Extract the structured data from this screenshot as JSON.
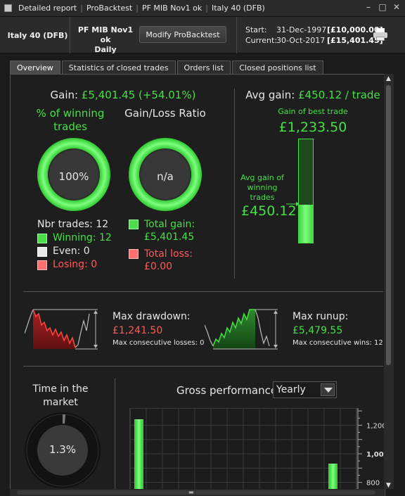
{
  "titlebar": {
    "segments": [
      "Detailed report",
      "ProBacktest",
      "PF MIB Nov1 ok",
      "Italy 40 (DFB)"
    ],
    "controls": [
      "–",
      "□",
      "✕"
    ]
  },
  "header": {
    "instrument": "Italy 40 (DFB)",
    "strategy_name": "PF MIB Nov1 ok",
    "timeframe": "Daily",
    "modify_button": "Modify ProBacktest",
    "start_label": "Start:",
    "start_date": "31-Dec-1997",
    "start_value": "[£10,000.00]",
    "current_label": "Current:",
    "current_date": "30-Oct-2017",
    "current_value": "[£15,401.45]",
    "print_icon": "printer-icon"
  },
  "tabs": [
    {
      "label": "Overview",
      "active": true
    },
    {
      "label": "Statistics of closed trades",
      "active": false
    },
    {
      "label": "Orders list",
      "active": false
    },
    {
      "label": "Closed positions list",
      "active": false
    }
  ],
  "overview": {
    "gain_label": "Gain:",
    "gain_value": "£5,401.45 (+54.01%)",
    "winning_title": "% of winning trades",
    "winning_value": "100%",
    "winning_fraction": 1.0,
    "gl_title": "Gain/Loss Ratio",
    "gl_value": "n/a",
    "nbr_trades": "Nbr trades: 12",
    "winning": "Winning: 12",
    "even": "Even: 0",
    "losing": "Losing: 0",
    "total_gain_label": "Total gain:",
    "total_gain_value": "£5,401.45",
    "total_loss_label": "Total loss:",
    "total_loss_value": "£0.00",
    "avg_gain_label": "Avg gain:",
    "avg_gain_value": "£450.12 / trade",
    "best_trade_label": "Gain of best trade",
    "best_trade_value": "£1,233.50",
    "avg_winning_label": "Avg gain of winning trades",
    "avg_winning_value": "£450.12",
    "avg_over_best": 0.365,
    "max_drawdown_label": "Max drawdown:",
    "max_drawdown_value": "£1,241.50",
    "max_cons_losses": "Max consecutive losses: 0",
    "max_runup_label": "Max runup:",
    "max_runup_value": "£5,479.55",
    "max_cons_wins": "Max consecutive wins: 12",
    "time_market_title": "Time in the market",
    "time_market_value": "1.3%",
    "time_market_fraction": 0.013,
    "gross_perf_title": "Gross performance",
    "gross_perf_select": "Yearly"
  },
  "colors": {
    "green": "#45e045",
    "red": "#ff5a5a",
    "panel": "#1e1e1e"
  },
  "chart_data": {
    "type": "bar",
    "title": "Gross performance",
    "xlabel": "",
    "ylabel": "",
    "y_ticks": [
      1200,
      1000,
      800
    ],
    "ylim": [
      700,
      1320
    ],
    "values_visible": [
      1240,
      0,
      0,
      0,
      0,
      0,
      0,
      0,
      0,
      0,
      0,
      0,
      930,
      0
    ],
    "grid": true
  }
}
